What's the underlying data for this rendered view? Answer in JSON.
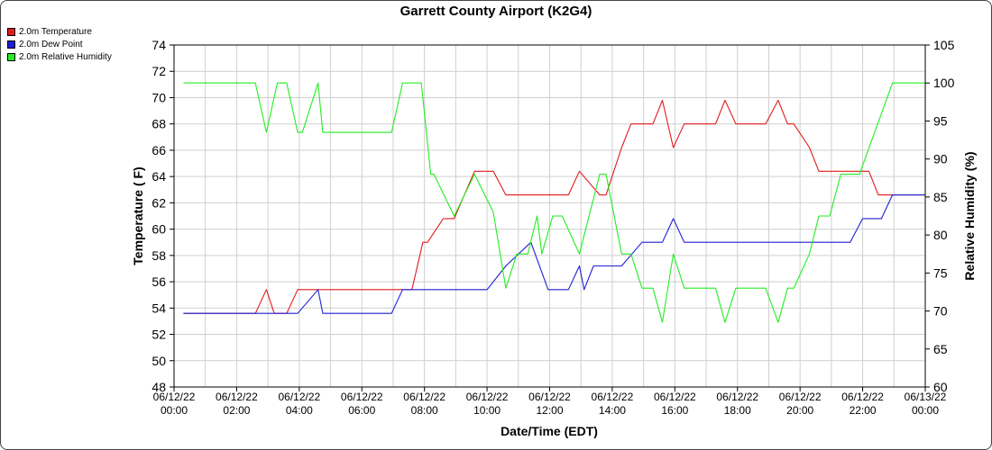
{
  "chart_data": {
    "type": "line",
    "title": "Garrett County Airport (K2G4)",
    "xlabel": "Date/Time (EDT)",
    "ylabel_left": "Temperature ( F)",
    "ylabel_right": "Relative Humidity (%)",
    "ylim_left": [
      48,
      74
    ],
    "ylim_right": [
      60,
      105
    ],
    "xlim_hours": [
      0,
      24
    ],
    "grid": true,
    "legend_position": "top-left",
    "x_tick_labels": [
      [
        "06/12/22",
        "00:00"
      ],
      [
        "06/12/22",
        "02:00"
      ],
      [
        "06/12/22",
        "04:00"
      ],
      [
        "06/12/22",
        "06:00"
      ],
      [
        "06/12/22",
        "08:00"
      ],
      [
        "06/12/22",
        "10:00"
      ],
      [
        "06/12/22",
        "12:00"
      ],
      [
        "06/12/22",
        "14:00"
      ],
      [
        "06/12/22",
        "16:00"
      ],
      [
        "06/12/22",
        "18:00"
      ],
      [
        "06/12/22",
        "20:00"
      ],
      [
        "06/12/22",
        "22:00"
      ],
      [
        "06/13/22",
        "00:00"
      ]
    ],
    "y_left_ticks": [
      48,
      50,
      52,
      54,
      56,
      58,
      60,
      62,
      64,
      66,
      68,
      70,
      72,
      74
    ],
    "y_right_ticks": [
      60,
      65,
      70,
      75,
      80,
      85,
      90,
      95,
      100,
      105
    ],
    "series": [
      {
        "name": "2.0m Temperature",
        "axis": "left",
        "color": "#e31a1c",
        "points": [
          [
            0.3,
            53.6
          ],
          [
            2.6,
            53.6
          ],
          [
            2.95,
            55.4
          ],
          [
            3.2,
            53.6
          ],
          [
            3.6,
            53.6
          ],
          [
            3.95,
            55.4
          ],
          [
            7.2,
            55.4
          ],
          [
            7.6,
            55.4
          ],
          [
            7.95,
            59.0
          ],
          [
            8.1,
            59.0
          ],
          [
            8.6,
            60.8
          ],
          [
            8.95,
            60.8
          ],
          [
            9.6,
            64.4
          ],
          [
            10.2,
            64.4
          ],
          [
            10.6,
            62.6
          ],
          [
            12.6,
            62.6
          ],
          [
            12.95,
            64.4
          ],
          [
            13.6,
            62.6
          ],
          [
            13.8,
            62.6
          ],
          [
            14.3,
            66.2
          ],
          [
            14.6,
            68.0
          ],
          [
            15.3,
            68.0
          ],
          [
            15.6,
            69.8
          ],
          [
            15.95,
            66.2
          ],
          [
            16.3,
            68.0
          ],
          [
            17.3,
            68.0
          ],
          [
            17.6,
            69.8
          ],
          [
            17.95,
            68.0
          ],
          [
            18.9,
            68.0
          ],
          [
            19.3,
            69.8
          ],
          [
            19.6,
            68.0
          ],
          [
            19.8,
            68.0
          ],
          [
            20.3,
            66.2
          ],
          [
            20.6,
            64.4
          ],
          [
            21.6,
            64.4
          ],
          [
            22.2,
            64.4
          ],
          [
            22.5,
            62.6
          ],
          [
            24,
            62.6
          ]
        ]
      },
      {
        "name": "2.0m Dew Point",
        "axis": "left",
        "color": "#1f1fd6",
        "points": [
          [
            0.3,
            53.6
          ],
          [
            3.95,
            53.6
          ],
          [
            4.6,
            55.4
          ],
          [
            4.75,
            53.6
          ],
          [
            6.95,
            53.6
          ],
          [
            7.3,
            55.4
          ],
          [
            10.0,
            55.4
          ],
          [
            10.6,
            57.2
          ],
          [
            11.4,
            59.0
          ],
          [
            11.95,
            55.4
          ],
          [
            12.6,
            55.4
          ],
          [
            12.95,
            57.2
          ],
          [
            13.1,
            55.4
          ],
          [
            13.4,
            57.2
          ],
          [
            14.3,
            57.2
          ],
          [
            14.95,
            59.0
          ],
          [
            15.6,
            59.0
          ],
          [
            15.95,
            60.8
          ],
          [
            16.3,
            59.0
          ],
          [
            20.6,
            59.0
          ],
          [
            20.95,
            59.0
          ],
          [
            21.6,
            59.0
          ],
          [
            22.0,
            60.8
          ],
          [
            22.6,
            60.8
          ],
          [
            22.95,
            62.6
          ],
          [
            24,
            62.6
          ]
        ]
      },
      {
        "name": "2.0m Relative Humidity",
        "axis": "right",
        "color": "#22ee22",
        "points": [
          [
            0.3,
            100
          ],
          [
            2.6,
            100
          ],
          [
            2.95,
            93.5
          ],
          [
            3.3,
            100
          ],
          [
            3.6,
            100
          ],
          [
            3.95,
            93.5
          ],
          [
            4.1,
            93.5
          ],
          [
            4.6,
            100
          ],
          [
            4.75,
            93.5
          ],
          [
            6.95,
            93.5
          ],
          [
            7.3,
            100
          ],
          [
            7.9,
            100
          ],
          [
            8.2,
            88
          ],
          [
            8.3,
            88
          ],
          [
            8.95,
            82.5
          ],
          [
            9.6,
            88
          ],
          [
            10.2,
            83
          ],
          [
            10.6,
            73
          ],
          [
            10.95,
            77.5
          ],
          [
            11.3,
            77.5
          ],
          [
            11.6,
            82.5
          ],
          [
            11.75,
            77.5
          ],
          [
            12.1,
            82.5
          ],
          [
            12.4,
            82.5
          ],
          [
            12.95,
            77.5
          ],
          [
            13.6,
            88
          ],
          [
            13.8,
            88
          ],
          [
            14.3,
            77.5
          ],
          [
            14.6,
            77.5
          ],
          [
            14.95,
            73
          ],
          [
            15.3,
            73
          ],
          [
            15.6,
            68.5
          ],
          [
            15.95,
            77.5
          ],
          [
            16.3,
            73
          ],
          [
            17.3,
            73
          ],
          [
            17.6,
            68.5
          ],
          [
            17.95,
            73
          ],
          [
            18.9,
            73
          ],
          [
            19.3,
            68.5
          ],
          [
            19.6,
            73
          ],
          [
            19.8,
            73
          ],
          [
            20.3,
            77.5
          ],
          [
            20.6,
            82.5
          ],
          [
            20.95,
            82.5
          ],
          [
            21.3,
            88
          ],
          [
            21.9,
            88
          ],
          [
            22.95,
            100
          ],
          [
            24,
            100
          ]
        ]
      }
    ]
  }
}
